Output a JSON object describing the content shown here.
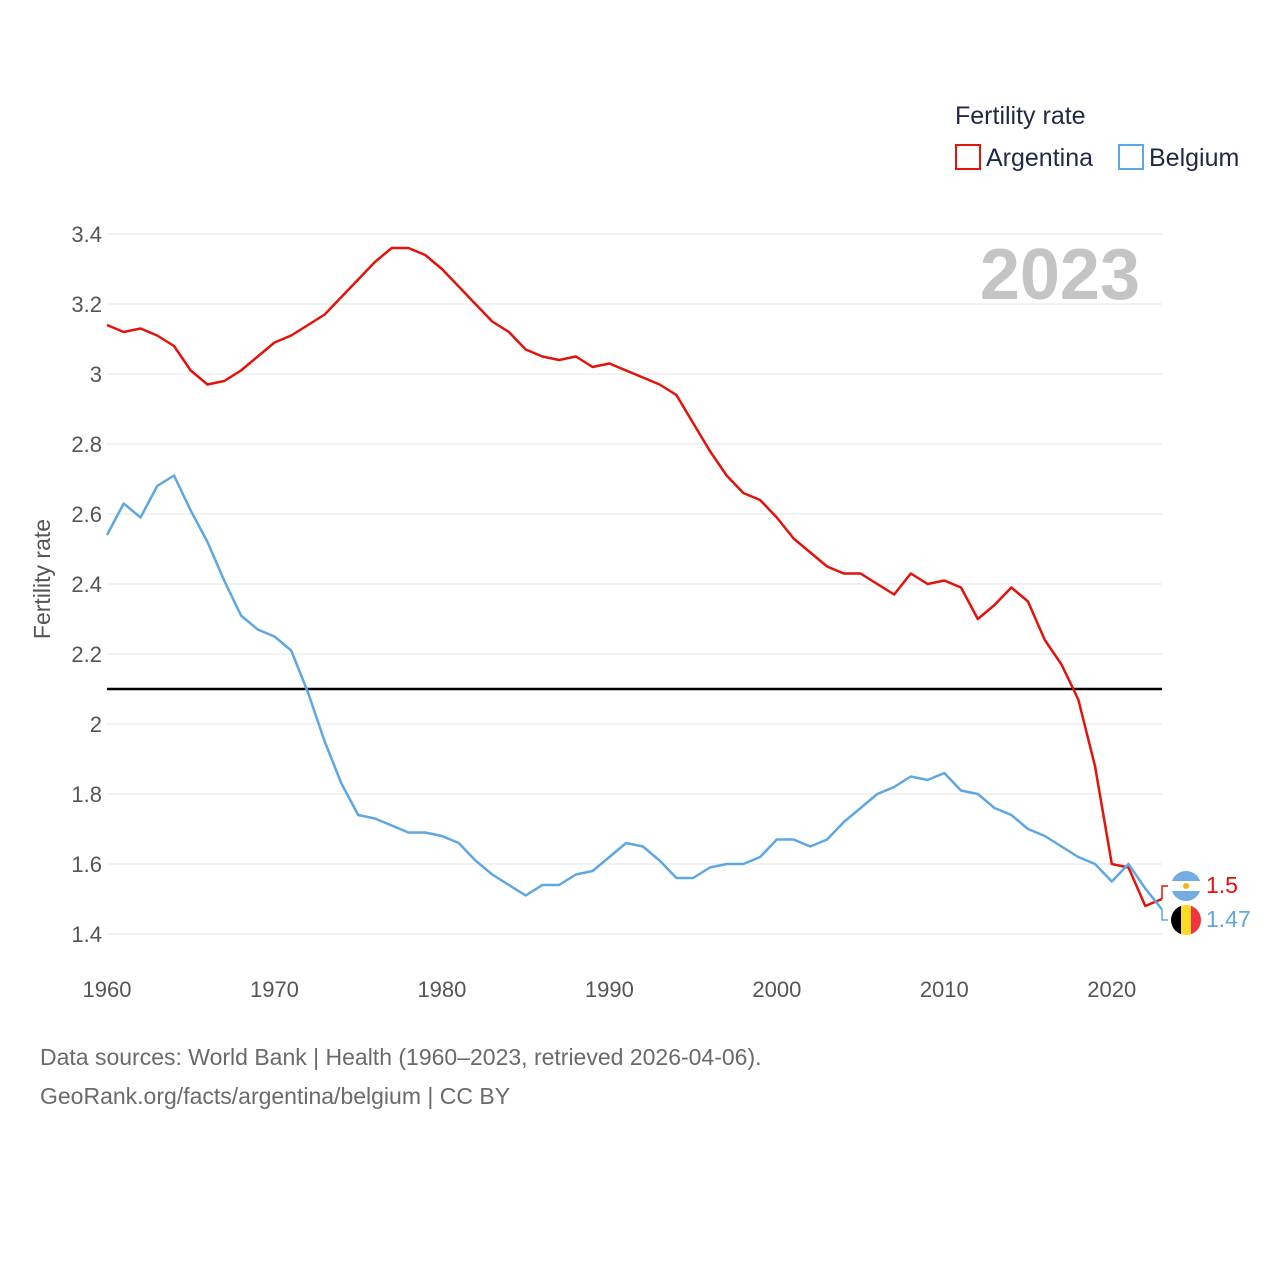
{
  "chart_data": {
    "type": "line",
    "ylabel": "Fertility rate",
    "xlabel": "",
    "legend_title": "Fertility rate",
    "legend_position": "top-right",
    "current_year_label": "2023",
    "xlim": [
      1960,
      2023
    ],
    "ylim": [
      1.35,
      3.45
    ],
    "y_ticks": [
      {
        "value": 1.4,
        "label": "1.4"
      },
      {
        "value": 1.6,
        "label": "1.6"
      },
      {
        "value": 1.8,
        "label": "1.8"
      },
      {
        "value": 2.0,
        "label": "2"
      },
      {
        "value": 2.2,
        "label": "2.2"
      },
      {
        "value": 2.4,
        "label": "2.4"
      },
      {
        "value": 2.6,
        "label": "2.6"
      },
      {
        "value": 2.8,
        "label": "2.8"
      },
      {
        "value": 3.0,
        "label": "3"
      },
      {
        "value": 3.2,
        "label": "3.2"
      },
      {
        "value": 3.4,
        "label": "3.4"
      }
    ],
    "x_ticks": [
      {
        "value": 1960,
        "label": "1960"
      },
      {
        "value": 1970,
        "label": "1970"
      },
      {
        "value": 1980,
        "label": "1980"
      },
      {
        "value": 1990,
        "label": "1990"
      },
      {
        "value": 2000,
        "label": "2000"
      },
      {
        "value": 2010,
        "label": "2010"
      },
      {
        "value": 2020,
        "label": "2020"
      }
    ],
    "reference_line": {
      "value": 2.1,
      "color": "#000000"
    },
    "x": [
      1960,
      1961,
      1962,
      1963,
      1964,
      1965,
      1966,
      1967,
      1968,
      1969,
      1970,
      1971,
      1972,
      1973,
      1974,
      1975,
      1976,
      1977,
      1978,
      1979,
      1980,
      1981,
      1982,
      1983,
      1984,
      1985,
      1986,
      1987,
      1988,
      1989,
      1990,
      1991,
      1992,
      1993,
      1994,
      1995,
      1996,
      1997,
      1998,
      1999,
      2000,
      2001,
      2002,
      2003,
      2004,
      2005,
      2006,
      2007,
      2008,
      2009,
      2010,
      2011,
      2012,
      2013,
      2014,
      2015,
      2016,
      2017,
      2018,
      2019,
      2020,
      2021,
      2022,
      2023
    ],
    "series": [
      {
        "name": "Argentina",
        "color": "#e3120b",
        "end_label": "1.5",
        "flag": "argentina-flag",
        "values": [
          3.14,
          3.12,
          3.13,
          3.11,
          3.08,
          3.01,
          2.97,
          2.98,
          3.01,
          3.05,
          3.09,
          3.11,
          3.14,
          3.17,
          3.22,
          3.27,
          3.32,
          3.36,
          3.36,
          3.34,
          3.3,
          3.25,
          3.2,
          3.15,
          3.12,
          3.07,
          3.05,
          3.04,
          3.05,
          3.02,
          3.03,
          3.01,
          2.99,
          2.97,
          2.94,
          2.86,
          2.78,
          2.71,
          2.66,
          2.64,
          2.59,
          2.53,
          2.49,
          2.45,
          2.43,
          2.43,
          2.4,
          2.37,
          2.43,
          2.4,
          2.41,
          2.39,
          2.3,
          2.34,
          2.39,
          2.35,
          2.24,
          2.17,
          2.07,
          1.88,
          1.6,
          1.59,
          1.48,
          1.5
        ]
      },
      {
        "name": "Belgium",
        "color": "#5ea7e3",
        "end_label": "1.47",
        "flag": "belgium-flag",
        "values": [
          2.54,
          2.63,
          2.59,
          2.68,
          2.71,
          2.61,
          2.52,
          2.41,
          2.31,
          2.27,
          2.25,
          2.21,
          2.09,
          1.95,
          1.83,
          1.74,
          1.73,
          1.71,
          1.69,
          1.69,
          1.68,
          1.66,
          1.61,
          1.57,
          1.54,
          1.51,
          1.54,
          1.54,
          1.57,
          1.58,
          1.62,
          1.66,
          1.65,
          1.61,
          1.56,
          1.56,
          1.59,
          1.6,
          1.6,
          1.62,
          1.67,
          1.67,
          1.65,
          1.67,
          1.72,
          1.76,
          1.8,
          1.82,
          1.85,
          1.84,
          1.86,
          1.81,
          1.8,
          1.76,
          1.74,
          1.7,
          1.68,
          1.65,
          1.62,
          1.6,
          1.55,
          1.6,
          1.53,
          1.47
        ]
      }
    ]
  },
  "footer": {
    "line1": "Data sources: World Bank | Health (1960–2023, retrieved 2026-04-06).",
    "line2": "GeoRank.org/facts/argentina/belgium | CC BY"
  }
}
